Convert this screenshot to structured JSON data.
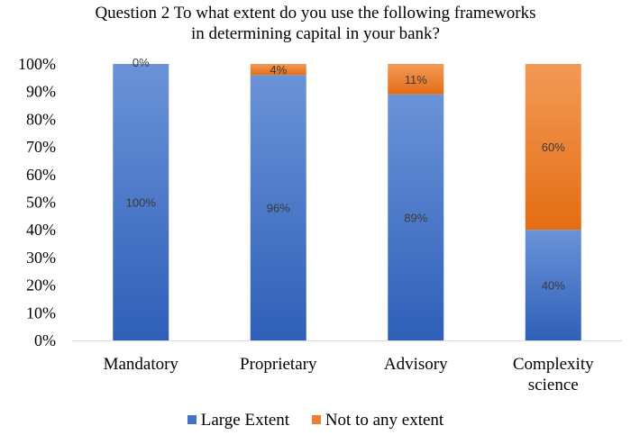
{
  "chart_data": {
    "type": "bar",
    "stacked": true,
    "percent": true,
    "title_line1": "Question 2 To what extent do you use the following frameworks",
    "title_line2": "in determining       capital in your bank?",
    "categories": [
      "Mandatory",
      "Proprietary",
      "Advisory",
      "Complexity science"
    ],
    "category_lines": [
      [
        "Mandatory"
      ],
      [
        "Proprietary"
      ],
      [
        "Advisory"
      ],
      [
        "Complexity",
        "science"
      ]
    ],
    "series": [
      {
        "name": "Large Extent",
        "values": [
          100,
          96,
          89,
          40
        ],
        "labels": [
          "100%",
          "96%",
          "89%",
          "40%"
        ],
        "color": "#4472C4"
      },
      {
        "name": "Not to any extent",
        "values": [
          0,
          4,
          11,
          60
        ],
        "labels": [
          "0%",
          "4%",
          "11%",
          "60%"
        ],
        "color": "#ED7D31"
      }
    ],
    "ylim": [
      0,
      100
    ],
    "yticks": [
      "0%",
      "10%",
      "20%",
      "30%",
      "40%",
      "50%",
      "60%",
      "70%",
      "80%",
      "90%",
      "100%"
    ],
    "legend_position": "bottom",
    "grid": false
  }
}
